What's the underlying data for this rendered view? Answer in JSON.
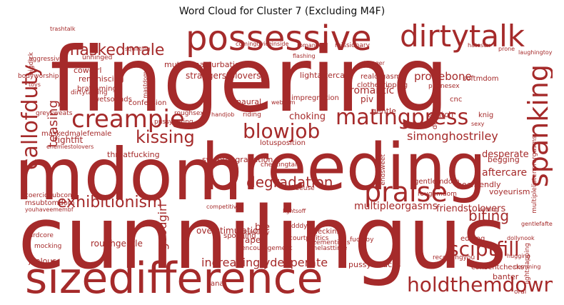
{
  "title": "Word Cloud for Cluster 7 (Excluding M4F)",
  "colors": {
    "word": "#a52a2a"
  },
  "words": [
    "fingering",
    "mdom",
    "breeding",
    "cunnilingus",
    "sizedifference",
    "possessive",
    "dirtytalk",
    "praise",
    "creampie",
    "spanking",
    "matingpress",
    "blowjob",
    "maskedmale",
    "kissing",
    "callofduty",
    "exhibitionism",
    "degradation",
    "holdthemdown",
    "sciptfill",
    "biting",
    "teasing",
    "simonghostriley",
    "pronebone",
    "goodgirl",
    "romantic",
    "choking",
    "aftercare",
    "desperate",
    "increasinglydesperate",
    "strangerstolovers",
    "multipleorgasms",
    "friendstolovers",
    "bfe",
    "rape",
    "gentle",
    "switch",
    "softmdom",
    "mutualmasturbation",
    "lightaftercare",
    "tightfit",
    "throatfucking",
    "riding",
    "handjob",
    "roughsex",
    "wetsounds",
    "brattaming",
    "dirtytalking",
    "bodyworship",
    "cowgirl",
    "reminiscing",
    "realorgasm",
    "clothesripping",
    "impregnation",
    "gentlemdom",
    "roughgentle",
    "overstimulation",
    "spooning",
    "checkins",
    "sizementions",
    "onelasttime",
    "anal",
    "banter",
    "consentchecks",
    "recordingyou",
    "voyeurism",
    "pocfriendly",
    "begging",
    "knig",
    "doggystyle",
    "sweetdegradation",
    "lotusposition",
    "confession",
    "maskedmalefemale",
    "edging",
    "cnc",
    "webcam",
    "binaural",
    "trashtalk",
    "comingtwiceinside",
    "romance",
    "missionary",
    "hatesex",
    "prone",
    "piv",
    "dddy",
    "fucktoy",
    "courtpolitics",
    "endsweet",
    "pussysmacks",
    "freeuse",
    "lightsoff",
    "jealous",
    "hardcore",
    "mocking",
    "encouragement",
    "alittlelucky",
    "competitive",
    "toys",
    "bigdick",
    "unhinged",
    "greysweats",
    "squirting",
    "cheatingtalk",
    "flashing",
    "phonesex",
    "stranger",
    "msubtomdom",
    "youhaveemembf",
    "coercionubcon",
    "betting",
    "oral",
    "aggressive",
    "enemiestolovers",
    "pussyeating",
    "mastdom",
    "roughmdom",
    "multiplelistenerorgasms",
    "laughingtoyou",
    "gentlefaftercare",
    "dollynook",
    "hugging",
    "cumming",
    "sexy",
    "lightslapping"
  ]
}
